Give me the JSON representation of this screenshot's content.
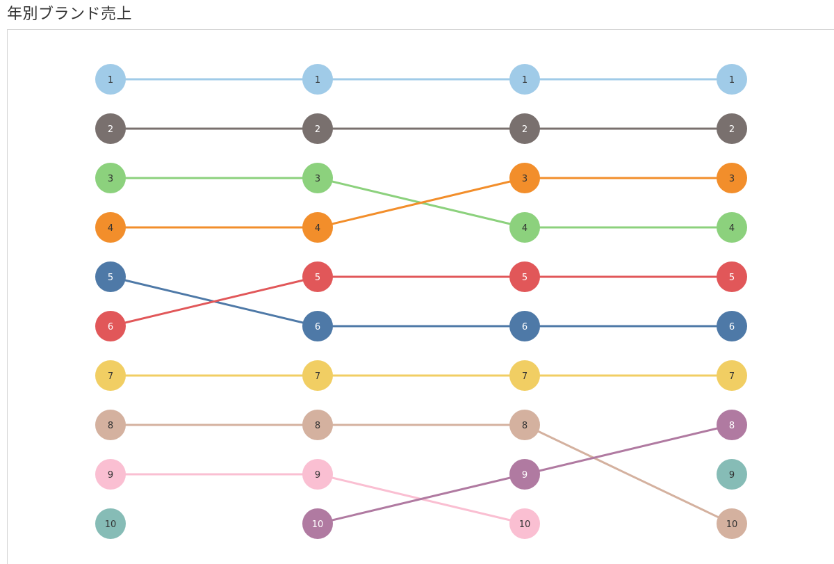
{
  "title": "年別ブランド売上",
  "chart_data": {
    "type": "line",
    "subtype": "bump",
    "columns": 4,
    "rank_range": [
      1,
      10
    ],
    "series": [
      {
        "id": "a",
        "color": "#a0cbe8",
        "label_color": "#333333",
        "ranks": [
          1,
          1,
          1,
          1
        ]
      },
      {
        "id": "b",
        "color": "#79706e",
        "label_color": "#ffffff",
        "ranks": [
          2,
          2,
          2,
          2
        ]
      },
      {
        "id": "c",
        "color": "#8cd17d",
        "label_color": "#333333",
        "ranks": [
          3,
          3,
          4,
          4
        ]
      },
      {
        "id": "d",
        "color": "#f28e2b",
        "label_color": "#333333",
        "ranks": [
          4,
          4,
          3,
          3
        ]
      },
      {
        "id": "e",
        "color": "#4e79a7",
        "label_color": "#ffffff",
        "ranks": [
          5,
          6,
          6,
          6
        ]
      },
      {
        "id": "f",
        "color": "#e15759",
        "label_color": "#ffffff",
        "ranks": [
          6,
          5,
          5,
          5
        ]
      },
      {
        "id": "g",
        "color": "#f1ce63",
        "label_color": "#333333",
        "ranks": [
          7,
          7,
          7,
          7
        ]
      },
      {
        "id": "h",
        "color": "#d4b19f",
        "label_color": "#333333",
        "ranks": [
          8,
          8,
          8,
          10
        ]
      },
      {
        "id": "i",
        "color": "#fabfd2",
        "label_color": "#333333",
        "ranks": [
          9,
          9,
          10,
          null
        ]
      },
      {
        "id": "j",
        "color": "#86bcb6",
        "label_color": "#333333",
        "ranks": [
          10,
          null,
          null,
          9
        ]
      },
      {
        "id": "k",
        "color": "#b07aa1",
        "label_color": "#ffffff",
        "ranks": [
          null,
          10,
          9,
          8
        ]
      }
    ]
  }
}
